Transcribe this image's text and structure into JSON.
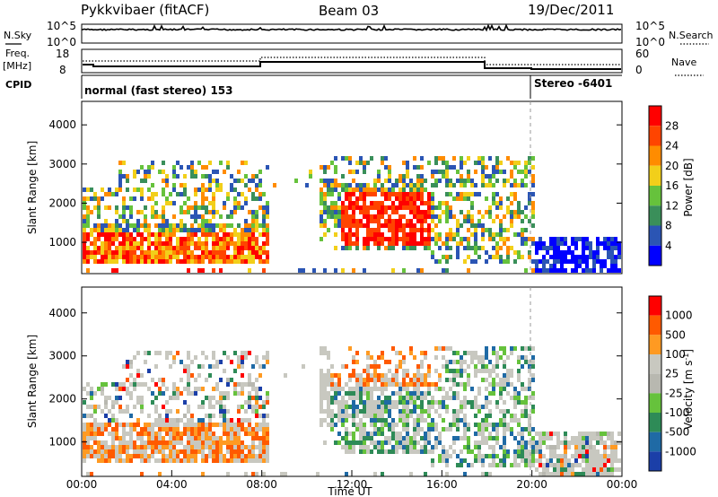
{
  "header": {
    "radar": "Pykkvibaer (fitACF)",
    "beam": "Beam 03",
    "date": "19/Dec/2011"
  },
  "noise_panel": {
    "left_label": "N.Sky",
    "right_label": "N.Search",
    "left_ticks": [
      "10^5",
      "10^0"
    ],
    "right_ticks": [
      "10^5",
      "10^0"
    ]
  },
  "freq_panel": {
    "left_label_1": "Freq.",
    "left_label_2": "[MHz]",
    "left_ticks": [
      "18",
      "8"
    ],
    "right_label": "Nave",
    "right_ticks": [
      "60",
      "0"
    ]
  },
  "cpid_panel": {
    "label": "CPID",
    "mode_1": "normal (fast stereo) 153",
    "mode_2": "Stereo -6401"
  },
  "colors": {
    "power_scale": [
      "#0000ff",
      "#2b55b4",
      "#3a8f5a",
      "#66c23c",
      "#f2cf1a",
      "#ff8c00",
      "#ff4400",
      "#ff0000"
    ],
    "velocity_scale": [
      "#ff0000",
      "#ff5a00",
      "#ff9a22",
      "#c8c8c0",
      "#b8b8b0",
      "#66c23c",
      "#2e8b57",
      "#1f6aa5",
      "#1b3fa8"
    ]
  },
  "chart_data": [
    {
      "type": "heatmap",
      "title": "Power",
      "xlabel": "",
      "ylabel": "Slant Range [km]",
      "x_ticks": [
        "00:00",
        "04:00",
        "08:00",
        "12:00",
        "16:00",
        "20:00",
        "00:00"
      ],
      "y_ticks": [
        1000,
        2000,
        3000,
        4000
      ],
      "ylim": [
        200,
        4600
      ],
      "xlim_hours": [
        0,
        24
      ],
      "colorbar": {
        "label": "Power [dB]",
        "ticks": [
          4,
          8,
          12,
          16,
          20,
          24,
          28
        ]
      },
      "grid": false
    },
    {
      "type": "heatmap",
      "title": "Velocity",
      "xlabel": "Time UT",
      "ylabel": "Slant Range [km]",
      "x_ticks": [
        "00:00",
        "04:00",
        "08:00",
        "12:00",
        "16:00",
        "20:00",
        "00:00"
      ],
      "y_ticks": [
        1000,
        2000,
        3000,
        4000
      ],
      "ylim": [
        200,
        4600
      ],
      "xlim_hours": [
        0,
        24
      ],
      "colorbar": {
        "label": "Velocity [m s^-1]",
        "ticks": [
          1000,
          500,
          100,
          25,
          -25,
          -100,
          -500,
          -1000
        ]
      },
      "grid": false
    }
  ]
}
